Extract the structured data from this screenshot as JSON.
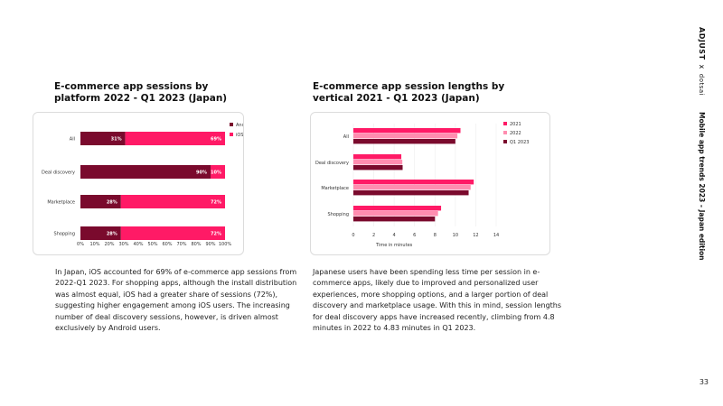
{
  "colors": {
    "android": "#7a0a2d",
    "ios": "#ff1a66",
    "y2021": "#ff1a66",
    "y2022": "#ff8db0",
    "q12023": "#7a0a2d"
  },
  "sidebar": {
    "brand": "ADJUST",
    "separator": "x",
    "partner": "dotsai",
    "report_title": "Mobile app trends 2023 - Japan edition"
  },
  "page_number": "33",
  "left": {
    "title": "E-commerce app sessions by platform 2022 - Q1 2023 (Japan)",
    "paragraph": "In Japan, iOS accounted for 69% of e-commerce app sessions from 2022-Q1 2023. For shopping apps, although the install distribution was almost equal, iOS had a greater share of sessions (72%), suggesting higher engagement among iOS users. The increasing number of deal discovery sessions, however, is driven almost exclusively by Android users."
  },
  "right": {
    "title": "E-commerce app session lengths by vertical 2021 - Q1 2023 (Japan)",
    "paragraph": "Japanese users have been spending less time per session in e-commerce apps, likely due to improved and personalized user experiences, more shopping options, and a larger portion of deal discovery and marketplace usage. With this in mind, session lengths for deal discovery apps have increased recently, climbing from 4.8 minutes in 2022 to 4.83 minutes in Q1 2023."
  },
  "chart_data": [
    {
      "type": "bar",
      "orientation": "horizontal",
      "stacked": true,
      "categories": [
        "All",
        "Deal discovery",
        "Marketplace",
        "Shopping"
      ],
      "series": [
        {
          "name": "Android",
          "values": [
            31,
            90,
            28,
            28
          ],
          "labels": [
            "31%",
            "90%",
            "28%",
            "28%"
          ]
        },
        {
          "name": "iOS",
          "values": [
            69,
            10,
            72,
            72
          ],
          "labels": [
            "69%",
            "10%",
            "72%",
            "72%"
          ]
        }
      ],
      "x_ticks": [
        "0%",
        "10%",
        "20%",
        "30%",
        "40%",
        "50%",
        "60%",
        "70%",
        "80%",
        "90%",
        "100%"
      ],
      "xlim": [
        0,
        100
      ],
      "legend": "top-right"
    },
    {
      "type": "bar",
      "orientation": "horizontal",
      "categories": [
        "All",
        "Deal discovery",
        "Marketplace",
        "Shopping"
      ],
      "series": [
        {
          "name": "2021",
          "values": [
            10.5,
            4.7,
            11.8,
            8.6
          ]
        },
        {
          "name": "2022",
          "values": [
            10.2,
            4.8,
            11.5,
            8.3
          ]
        },
        {
          "name": "Q1 2023",
          "values": [
            10.0,
            4.83,
            11.3,
            8.0
          ]
        }
      ],
      "x_ticks": [
        "0",
        "2",
        "4",
        "6",
        "8",
        "10",
        "12",
        "14"
      ],
      "xlim": [
        0,
        14
      ],
      "xlabel": "Time in minutes",
      "legend": "top-right"
    }
  ]
}
